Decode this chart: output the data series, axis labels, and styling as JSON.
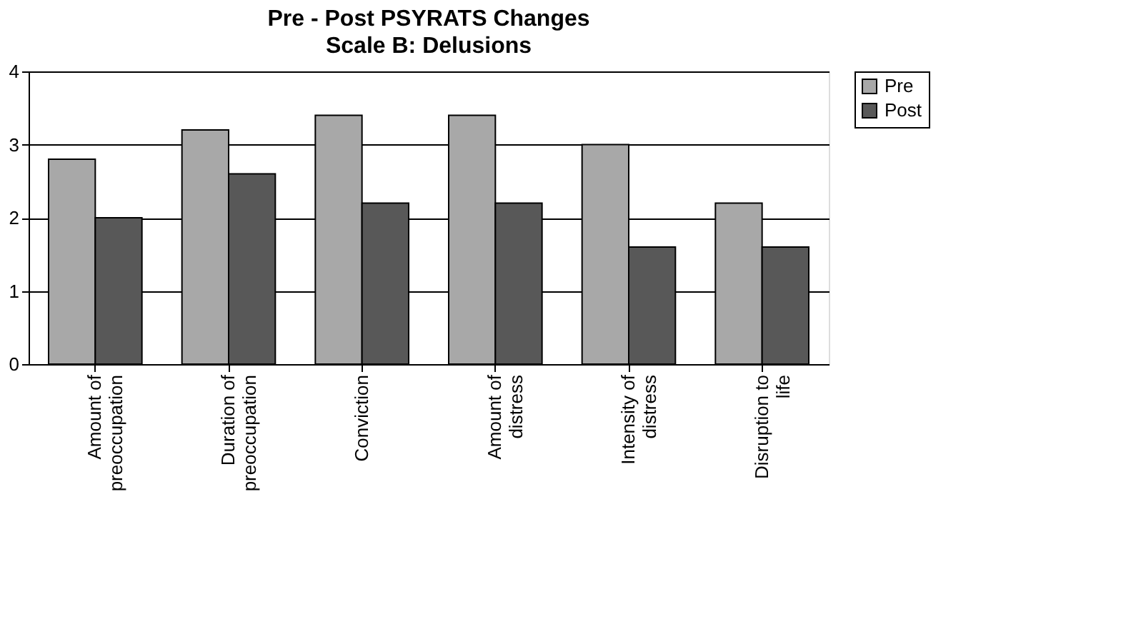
{
  "chart_data": {
    "type": "bar",
    "title": "Pre - Post PSYRATS Changes",
    "subtitle": "Scale B: Delusions",
    "categories": [
      "Amount of\npreoccupation",
      "Duration of\npreoccupation",
      "Conviction",
      "Amount of\ndistress",
      "Intensity of\ndistress",
      "Disruption to\nlife"
    ],
    "series": [
      {
        "name": "Pre",
        "color": "#a8a8a8",
        "values": [
          2.8,
          3.2,
          3.4,
          3.4,
          3.0,
          2.2
        ]
      },
      {
        "name": "Post",
        "color": "#585858",
        "values": [
          2.0,
          2.6,
          2.2,
          2.2,
          1.6,
          1.6
        ]
      }
    ],
    "ylim": [
      0,
      4
    ],
    "yticks": [
      0,
      1,
      2,
      3,
      4
    ],
    "grid": "y",
    "legend": "right"
  }
}
